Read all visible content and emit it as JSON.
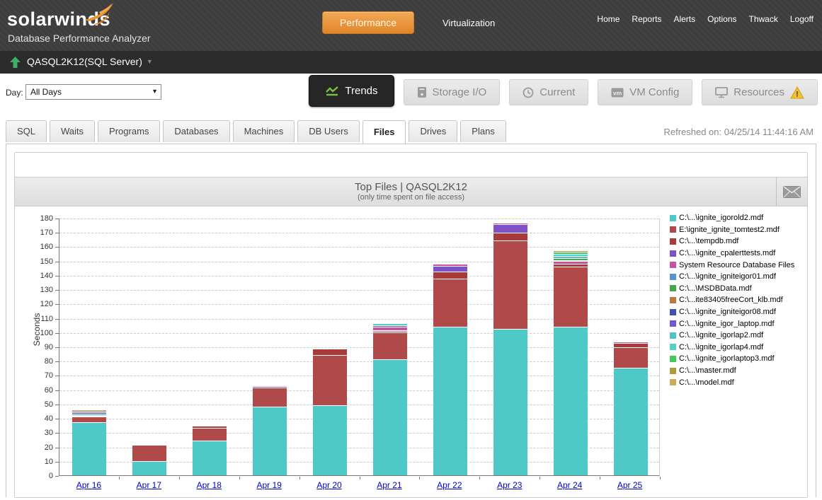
{
  "header": {
    "logo_text": "solarwinds",
    "subtitle": "Database Performance Analyzer",
    "performance_button": "Performance",
    "virtualization_label": "Virtualization",
    "nav_links": [
      "Home",
      "Reports",
      "Alerts",
      "Options",
      "Thwack",
      "Logoff"
    ]
  },
  "instance_bar": {
    "label": "QASQL2K12(SQL Server)"
  },
  "toolbar": {
    "day_label": "Day:",
    "day_value": "All Days",
    "view_buttons": [
      {
        "label": "Trends",
        "icon": "trends-chart-icon",
        "active": true,
        "warning": false
      },
      {
        "label": "Storage I/O",
        "icon": "storage-disk-icon",
        "active": false,
        "warning": false
      },
      {
        "label": "Current",
        "icon": "clock-icon",
        "active": false,
        "warning": false
      },
      {
        "label": "VM Config",
        "icon": "vm-icon",
        "active": false,
        "warning": false
      },
      {
        "label": "Resources",
        "icon": "monitor-icon",
        "active": false,
        "warning": true
      }
    ]
  },
  "tabs": {
    "items": [
      "SQL",
      "Waits",
      "Programs",
      "Databases",
      "Machines",
      "DB Users",
      "Files",
      "Drives",
      "Plans"
    ],
    "active": "Files",
    "refreshed_text": "Refreshed on: 04/25/14 11:44:16 AM"
  },
  "chart_header": {
    "title": "Top Files | QASQL2K12",
    "subtitle": "(only time spent on file access)"
  },
  "chart_data": {
    "type": "bar",
    "stacked": true,
    "title": "Top Files | QASQL2K12",
    "xlabel": "",
    "ylabel": "Seconds",
    "ylim": [
      0,
      180
    ],
    "ytick_step": 10,
    "grid": true,
    "legend_position": "right",
    "categories": [
      "Apr 16",
      "Apr 17",
      "Apr 18",
      "Apr 19",
      "Apr 20",
      "Apr 21",
      "Apr 22",
      "Apr 23",
      "Apr 24",
      "Apr 25"
    ],
    "series": [
      {
        "name": "C:\\...\\ignite_igorold2.mdf",
        "color": "#4fc8c8",
        "values": [
          37,
          10,
          24,
          48,
          49,
          81,
          104,
          102.5,
          104,
          75
        ]
      },
      {
        "name": "E:\\ignite_ignite_tomtest2.mdf",
        "color": "#b04a4a",
        "values": [
          4.3,
          11.5,
          9,
          13.5,
          35,
          19,
          33.5,
          61.5,
          42,
          14.5
        ]
      },
      {
        "name": "C:\\...\\tempdb.mdf",
        "color": "#a93a3a",
        "values": [
          0,
          0,
          1.5,
          0,
          4.5,
          0.8,
          5,
          5.5,
          1.8,
          3
        ]
      },
      {
        "name": "C:\\...\\ignite_cpalerttests.mdf",
        "color": "#7d52c8",
        "values": [
          0,
          0,
          0,
          0,
          0,
          0.8,
          4,
          6,
          0,
          0
        ]
      },
      {
        "name": "System Resource Database Files",
        "color": "#c553a1",
        "values": [
          0.9,
          0,
          0,
          0.7,
          0,
          2.5,
          1.2,
          1.2,
          2,
          0.8
        ]
      },
      {
        "name": "C:\\...\\ignite_igniteigor01.mdf",
        "color": "#5b94cc",
        "values": [
          0.9,
          0,
          0,
          0,
          0,
          0,
          0,
          0,
          0.7,
          0
        ]
      },
      {
        "name": "C:\\...\\MSDBData.mdf",
        "color": "#4aa54a",
        "values": [
          0,
          0,
          0,
          0,
          0,
          0,
          0,
          0,
          1.4,
          0
        ]
      },
      {
        "name": "C:\\...ite83405freeCort_klb.mdf",
        "color": "#b87a3d",
        "values": [
          0,
          0,
          0,
          0,
          0,
          0,
          0,
          0,
          0,
          0
        ]
      },
      {
        "name": "C:\\...\\ignite_igniteigor08.mdf",
        "color": "#3d52a8",
        "values": [
          0.9,
          0,
          0,
          0,
          0,
          0,
          0,
          0,
          0,
          0
        ]
      },
      {
        "name": "C:\\...\\ignite_igor_laptop.mdf",
        "color": "#7257d0",
        "values": [
          0.9,
          0,
          0,
          0,
          0,
          0.8,
          0,
          0,
          0,
          0
        ]
      },
      {
        "name": "C:\\...\\ignite_igorlap2.mdf",
        "color": "#4fc3c9",
        "values": [
          0,
          0,
          0,
          0,
          0,
          0,
          0,
          0,
          1.4,
          0
        ]
      },
      {
        "name": "C:\\...\\ignite_igorlap4.mdf",
        "color": "#52d2c5",
        "values": [
          0,
          0,
          0,
          0,
          0,
          1.5,
          0,
          0,
          1.4,
          0
        ]
      },
      {
        "name": "C:\\...\\ignite_igorlaptop3.mdf",
        "color": "#43c95d",
        "values": [
          0,
          0,
          0,
          0,
          0,
          0,
          0,
          0,
          1.4,
          0
        ]
      },
      {
        "name": "C:\\...\\master.mdf",
        "color": "#ac9c3e",
        "values": [
          0.9,
          0,
          0,
          0,
          0,
          0,
          0,
          0,
          1,
          0
        ]
      },
      {
        "name": "C:\\...\\model.mdf",
        "color": "#c9ad58",
        "values": [
          0,
          0,
          0,
          0,
          0,
          0,
          0,
          0,
          0,
          0
        ]
      }
    ]
  }
}
